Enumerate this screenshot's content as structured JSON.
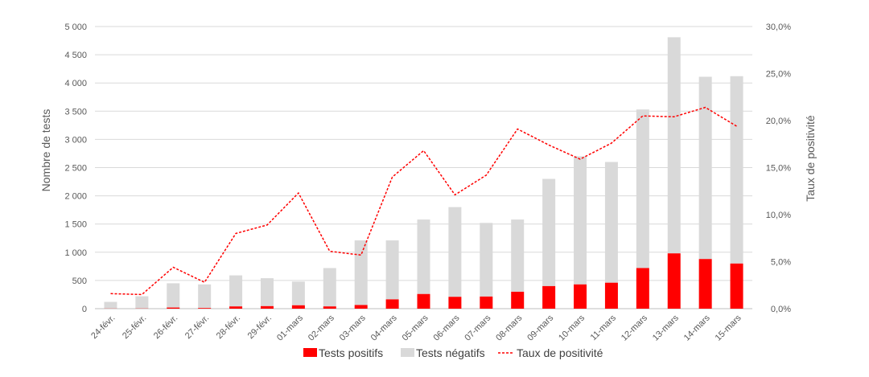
{
  "chart_data": {
    "type": "bar",
    "stacked": true,
    "categories": [
      "24-févr.",
      "25-févr.",
      "26-févr.",
      "27-févr.",
      "28-févr.",
      "29-févr.",
      "01-mars",
      "02-mars",
      "03-mars",
      "04-mars",
      "05-mars",
      "06-mars",
      "07-mars",
      "08-mars",
      "09-mars",
      "10-mars",
      "11-mars",
      "12-mars",
      "13-mars",
      "14-mars",
      "15-mars"
    ],
    "series": [
      {
        "name": "Tests positifs",
        "axis": "left",
        "color": "#ff0000",
        "values": [
          2,
          3,
          20,
          12,
          40,
          45,
          60,
          40,
          65,
          165,
          260,
          210,
          215,
          300,
          400,
          430,
          460,
          720,
          980,
          880,
          800
        ]
      },
      {
        "name": "Tests négatifs",
        "axis": "left",
        "color": "#d9d9d9",
        "values": [
          118,
          217,
          430,
          418,
          550,
          495,
          420,
          680,
          1145,
          1045,
          1320,
          1590,
          1305,
          1280,
          1900,
          2270,
          2140,
          2810,
          3830,
          3230,
          3320
        ]
      },
      {
        "name": "Taux de positivité",
        "type": "line",
        "axis": "right",
        "color": "#ff0000",
        "dash": "dashed",
        "values": [
          1.6,
          1.5,
          4.4,
          2.8,
          8.0,
          8.9,
          12.3,
          6.1,
          5.7,
          14.0,
          16.8,
          12.1,
          14.2,
          19.1,
          17.4,
          15.9,
          17.6,
          20.5,
          20.4,
          21.4,
          19.4
        ]
      }
    ],
    "yticks": [
      "0",
      "500",
      "1 000",
      "1 500",
      "2 000",
      "2 500",
      "3 000",
      "3 500",
      "4 000",
      "4 500",
      "5 000"
    ],
    "y2ticks": [
      "0,0%",
      "5,0%",
      "10,0%",
      "15,0%",
      "20,0%",
      "25,0%",
      "30,0%"
    ],
    "ylim": [
      0,
      5000
    ],
    "y2lim": [
      0,
      30
    ],
    "ylabel": "Nombre de tests",
    "y2label": "Taux de positivité",
    "xlabel": "",
    "title": "",
    "grid": true,
    "legend": "bottom"
  }
}
